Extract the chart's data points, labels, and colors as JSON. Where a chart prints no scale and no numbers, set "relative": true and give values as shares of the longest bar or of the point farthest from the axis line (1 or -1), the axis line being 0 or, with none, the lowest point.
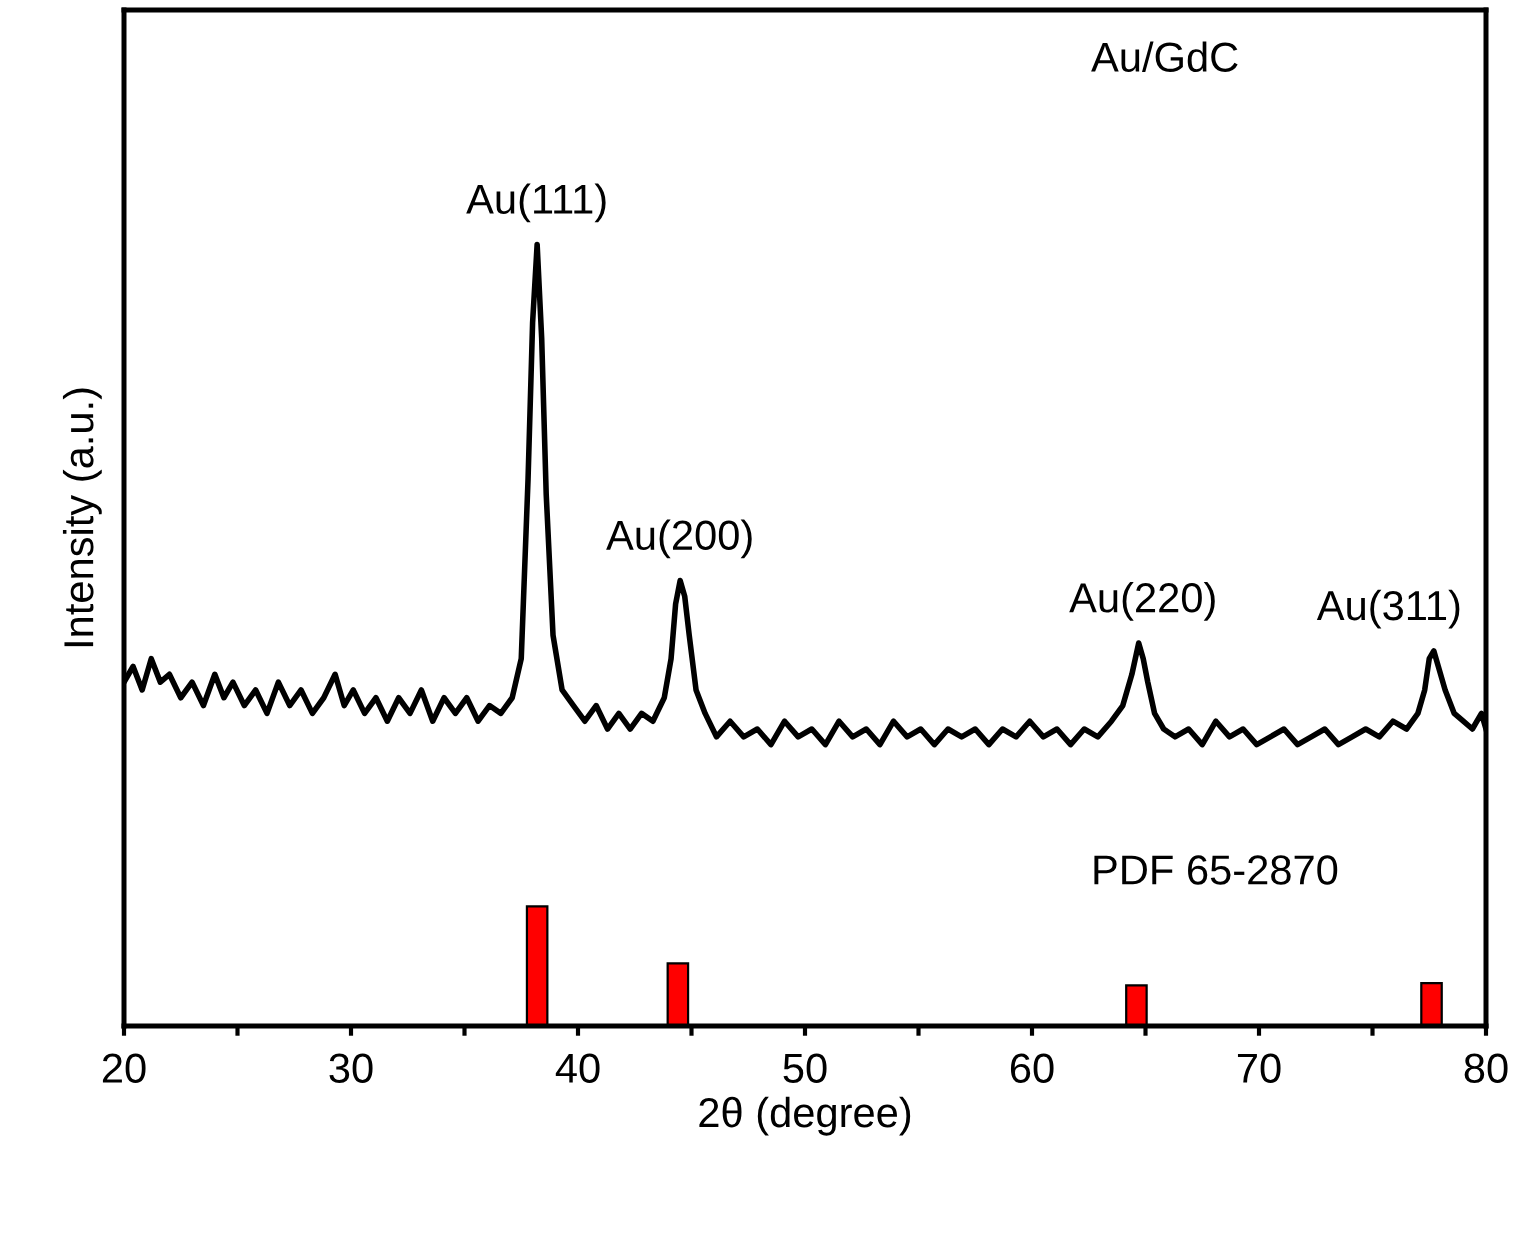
{
  "chart_data": {
    "type": "line",
    "relative": true,
    "xlabel": "2θ (degree)",
    "ylabel": "Intensity (a.u.)",
    "xlim": [
      20,
      80
    ],
    "xticks": [
      20,
      {
        "value": 25,
        "label": null
      },
      30,
      {
        "value": 35,
        "label": null
      },
      40,
      {
        "value": 45,
        "label": null
      },
      50,
      {
        "value": 55,
        "label": null
      },
      60,
      {
        "value": 65,
        "label": null
      },
      70,
      {
        "value": 75,
        "label": null
      },
      80
    ],
    "tick_labels": "x",
    "grid": false,
    "legend": false,
    "series": [
      {
        "color": "#000000",
        "x": [
          20,
          20.4,
          20.8,
          21.2,
          21.6,
          22,
          22.5,
          23,
          23.5,
          24,
          24.4,
          24.8,
          25.3,
          25.8,
          26.3,
          26.8,
          27.3,
          27.8,
          28.3,
          28.8,
          29.3,
          29.7,
          30.1,
          30.6,
          31.1,
          31.6,
          32.1,
          32.6,
          33.1,
          33.6,
          34.1,
          34.6,
          35.1,
          35.6,
          36.1,
          36.6,
          37.1,
          37.5,
          37.8,
          38.0,
          38.2,
          38.4,
          38.6,
          38.9,
          39.3,
          39.8,
          40.3,
          40.8,
          41.3,
          41.8,
          42.3,
          42.8,
          43.3,
          43.8,
          44.1,
          44.3,
          44.5,
          44.7,
          44.9,
          45.2,
          45.6,
          46.1,
          46.7,
          47.3,
          47.9,
          48.5,
          49.1,
          49.7,
          50.3,
          50.9,
          51.5,
          52.1,
          52.7,
          53.3,
          53.9,
          54.5,
          55.1,
          55.7,
          56.3,
          56.9,
          57.5,
          58.1,
          58.7,
          59.3,
          59.9,
          60.5,
          61.1,
          61.7,
          62.3,
          62.9,
          63.5,
          64.0,
          64.4,
          64.7,
          64.9,
          65.1,
          65.4,
          65.8,
          66.3,
          66.9,
          67.5,
          68.1,
          68.7,
          69.3,
          69.9,
          70.5,
          71.1,
          71.7,
          72.3,
          72.9,
          73.5,
          74.1,
          74.7,
          75.3,
          75.9,
          76.5,
          77.0,
          77.3,
          77.5,
          77.7,
          77.9,
          78.2,
          78.6,
          79.0,
          79.4,
          79.8,
          80
        ],
        "values": [
          0.44,
          0.46,
          0.43,
          0.47,
          0.44,
          0.45,
          0.42,
          0.44,
          0.41,
          0.45,
          0.42,
          0.44,
          0.41,
          0.43,
          0.4,
          0.44,
          0.41,
          0.43,
          0.4,
          0.42,
          0.45,
          0.41,
          0.43,
          0.4,
          0.42,
          0.39,
          0.42,
          0.4,
          0.43,
          0.39,
          0.42,
          0.4,
          0.42,
          0.39,
          0.41,
          0.4,
          0.42,
          0.47,
          0.7,
          0.9,
          1.0,
          0.88,
          0.68,
          0.5,
          0.43,
          0.41,
          0.39,
          0.41,
          0.38,
          0.4,
          0.38,
          0.4,
          0.39,
          0.42,
          0.47,
          0.54,
          0.57,
          0.55,
          0.5,
          0.43,
          0.4,
          0.37,
          0.39,
          0.37,
          0.38,
          0.36,
          0.39,
          0.37,
          0.38,
          0.36,
          0.39,
          0.37,
          0.38,
          0.36,
          0.39,
          0.37,
          0.38,
          0.36,
          0.38,
          0.37,
          0.38,
          0.36,
          0.38,
          0.37,
          0.39,
          0.37,
          0.38,
          0.36,
          0.38,
          0.37,
          0.39,
          0.41,
          0.45,
          0.49,
          0.47,
          0.44,
          0.4,
          0.38,
          0.37,
          0.38,
          0.36,
          0.39,
          0.37,
          0.38,
          0.36,
          0.37,
          0.38,
          0.36,
          0.37,
          0.38,
          0.36,
          0.37,
          0.38,
          0.37,
          0.39,
          0.38,
          0.4,
          0.43,
          0.47,
          0.48,
          0.46,
          0.43,
          0.4,
          0.39,
          0.38,
          0.4,
          0.38
        ]
      },
      {
        "type": "bar",
        "color": "#ff0000",
        "x": [
          38.2,
          44.4,
          64.6,
          77.6
        ],
        "values": [
          0.153,
          0.08,
          0.052,
          0.055
        ]
      }
    ],
    "annotations": [
      {
        "text": "Au(111)",
        "x": 38.2,
        "y": 1.0
      },
      {
        "text": "Au(200)",
        "x": 44.5,
        "y": 0.57
      },
      {
        "text": "Au(220)",
        "x": 64.9,
        "y": 0.49
      },
      {
        "text": "Au(311)",
        "x": 77.7,
        "y": 0.48
      },
      "Au/GdC",
      "PDF 65-2870"
    ]
  }
}
